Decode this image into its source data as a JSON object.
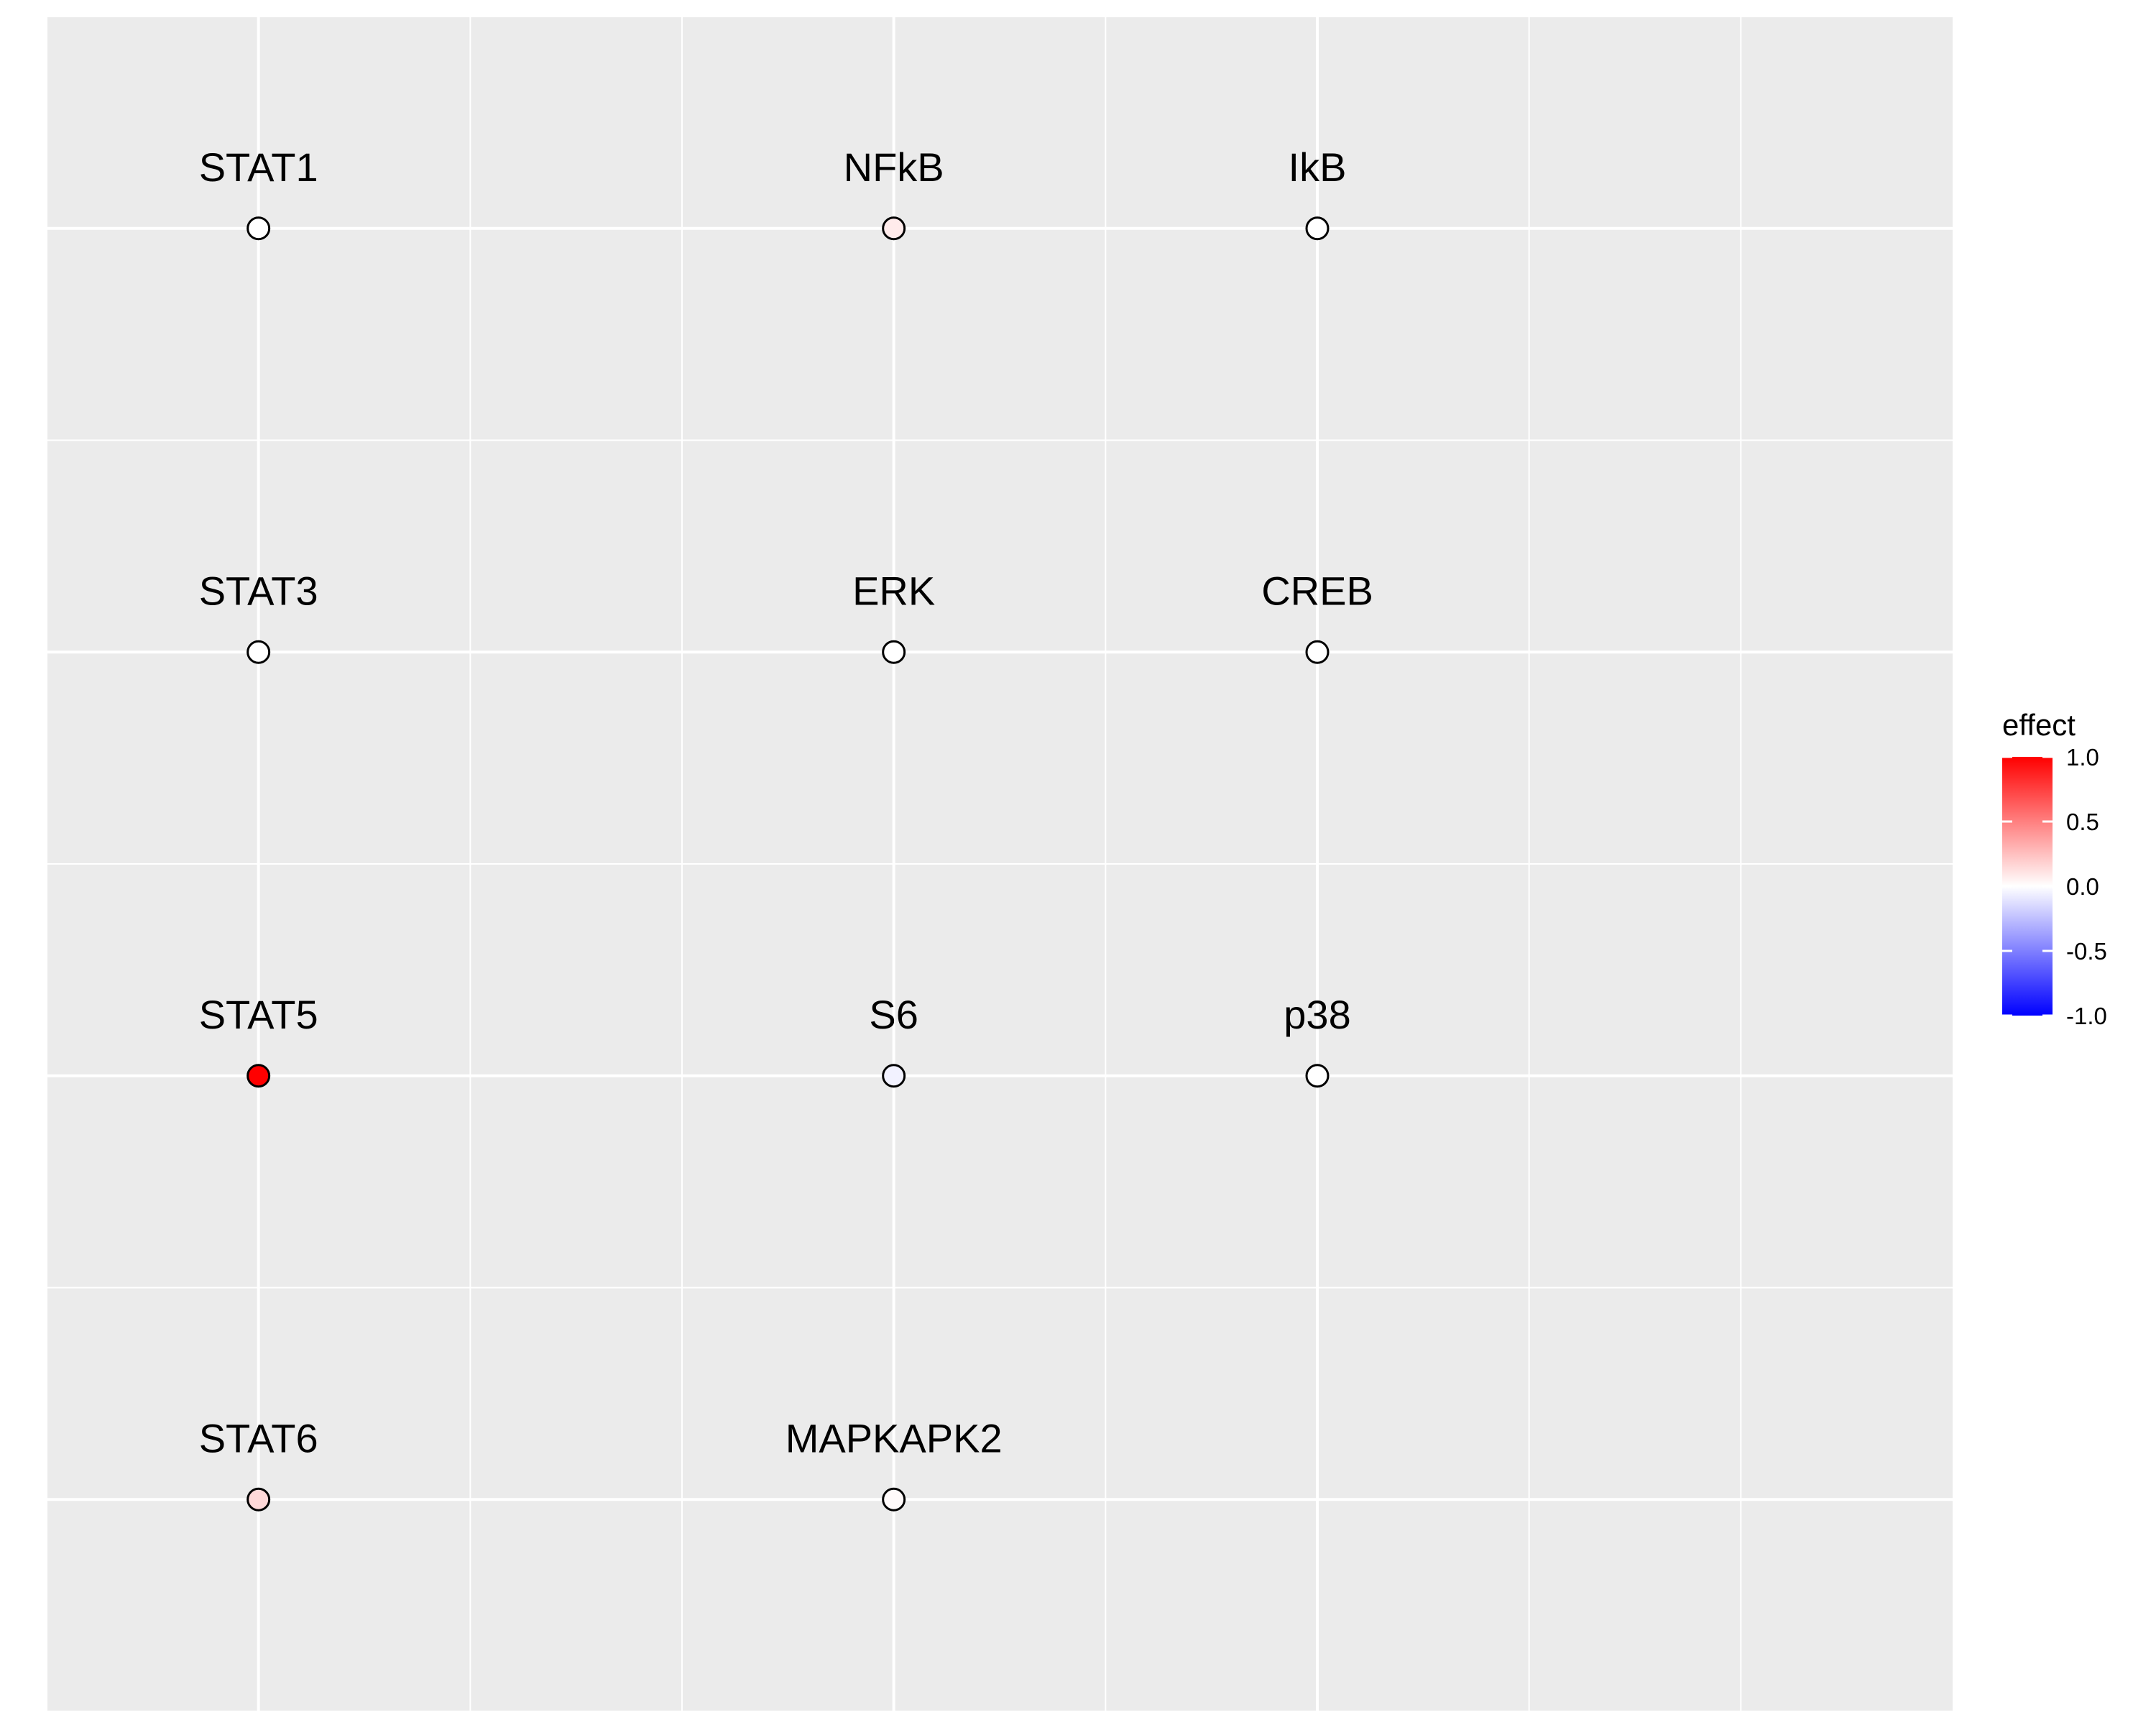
{
  "chart_data": {
    "type": "scatter",
    "title": "",
    "xlabel": "",
    "ylabel": "",
    "xlim": [
      0.5,
      5.0
    ],
    "ylim": [
      0.5,
      4.5
    ],
    "grid": true,
    "x_ticks_major": [
      1,
      2.5,
      3.5
    ],
    "x_ticks_minor": [
      0.5,
      1.5,
      2,
      3,
      4,
      4.5
    ],
    "y_ticks_major": [
      1,
      2,
      3,
      4
    ],
    "y_ticks_minor": [
      0.5,
      1.5,
      2.5,
      3.5,
      4.5
    ],
    "points": [
      {
        "label": "STAT1",
        "x": 1,
        "y": 4,
        "effect": 0.0
      },
      {
        "label": "NFkB",
        "x": 2.5,
        "y": 4,
        "effect": 0.08
      },
      {
        "label": "IkB",
        "x": 3.5,
        "y": 4,
        "effect": 0.0
      },
      {
        "label": "STAT3",
        "x": 1,
        "y": 3,
        "effect": 0.0
      },
      {
        "label": "ERK",
        "x": 2.5,
        "y": 3,
        "effect": 0.0
      },
      {
        "label": "CREB",
        "x": 3.5,
        "y": 3,
        "effect": 0.0
      },
      {
        "label": "STAT5",
        "x": 1,
        "y": 2,
        "effect": 1.0
      },
      {
        "label": "S6",
        "x": 2.5,
        "y": 2,
        "effect": -0.05
      },
      {
        "label": "p38",
        "x": 3.5,
        "y": 2,
        "effect": 0.0
      },
      {
        "label": "STAT6",
        "x": 1,
        "y": 1,
        "effect": 0.15
      },
      {
        "label": "MAPKAPK2",
        "x": 2.5,
        "y": 1,
        "effect": 0.02
      }
    ],
    "legend": {
      "title": "effect",
      "placement": "right",
      "range": [
        -1.0,
        1.0
      ],
      "ticks": [
        {
          "value": 1.0,
          "label": "1.0"
        },
        {
          "value": 0.5,
          "label": "0.5"
        },
        {
          "value": 0.0,
          "label": "0.0"
        },
        {
          "value": -0.5,
          "label": "-0.5"
        },
        {
          "value": -1.0,
          "label": "-1.0"
        }
      ],
      "colors": {
        "low": "#0000FF",
        "mid": "#FFFFFF",
        "high": "#FF0000"
      }
    },
    "colors": {
      "panel": "#EBEBEB",
      "grid": "#FFFFFF",
      "point_stroke": "#000000"
    }
  }
}
